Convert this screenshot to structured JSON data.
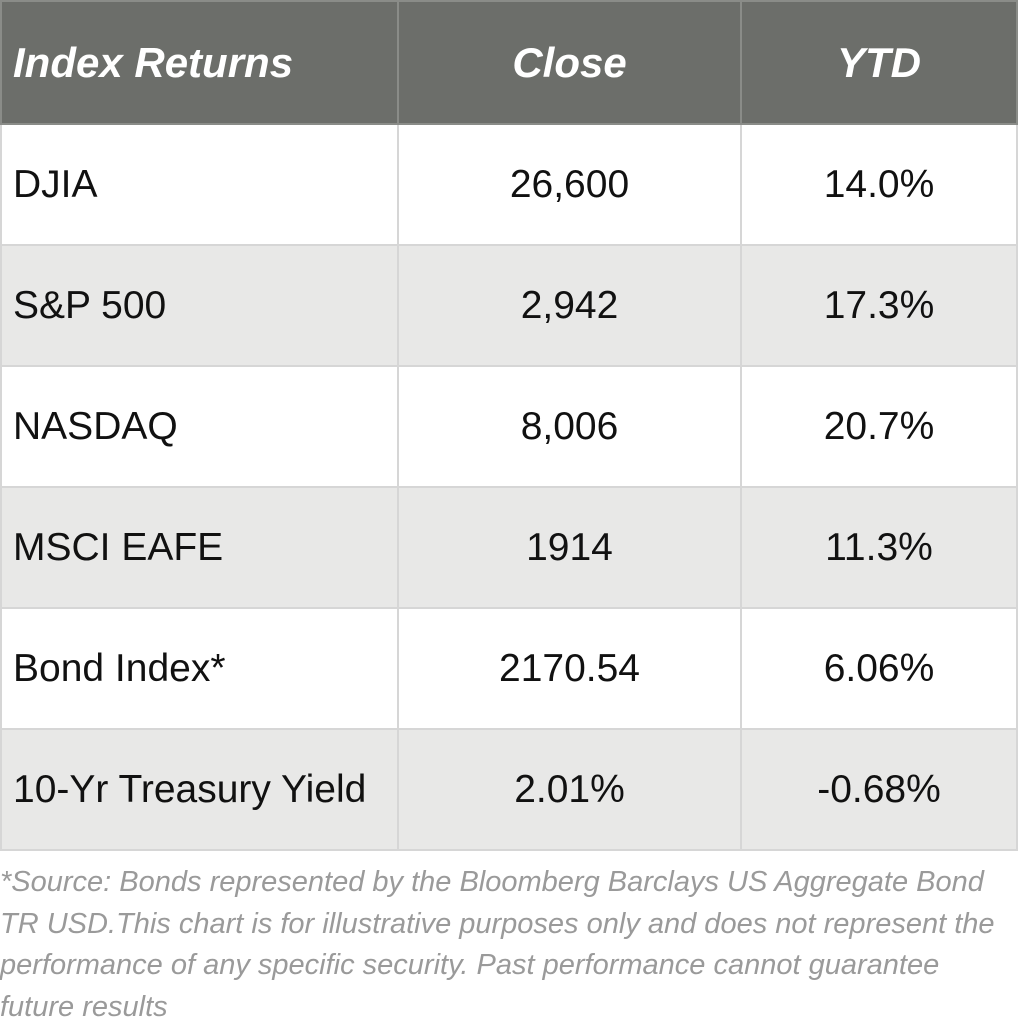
{
  "chart_data": {
    "type": "table",
    "columns": [
      "Index Returns",
      "Close",
      "YTD"
    ],
    "rows": [
      {
        "name": "DJIA",
        "close": "26,600",
        "ytd": "14.0%"
      },
      {
        "name": "S&P 500",
        "close": "2,942",
        "ytd": "17.3%"
      },
      {
        "name": "NASDAQ",
        "close": "8,006",
        "ytd": "20.7%"
      },
      {
        "name": "MSCI EAFE",
        "close": "1914",
        "ytd": "11.3%"
      },
      {
        "name": "Bond Index*",
        "close": "2170.54",
        "ytd": "6.06%"
      },
      {
        "name": "10-Yr Treasury Yield",
        "close": "2.01%",
        "ytd": "-0.68%"
      }
    ],
    "footnote": "*Source: Bonds represented by the Bloomberg Barclays US Aggregate Bond TR USD.This chart is for illustrative purposes only and does not represent the performance of any specific security. Past performance cannot guarantee future results"
  },
  "colors": {
    "header_bg": "#6c6e6a",
    "header_text": "#ffffff",
    "row_alt_bg": "#e8e8e7",
    "footnote_text": "#9a9a9a"
  }
}
